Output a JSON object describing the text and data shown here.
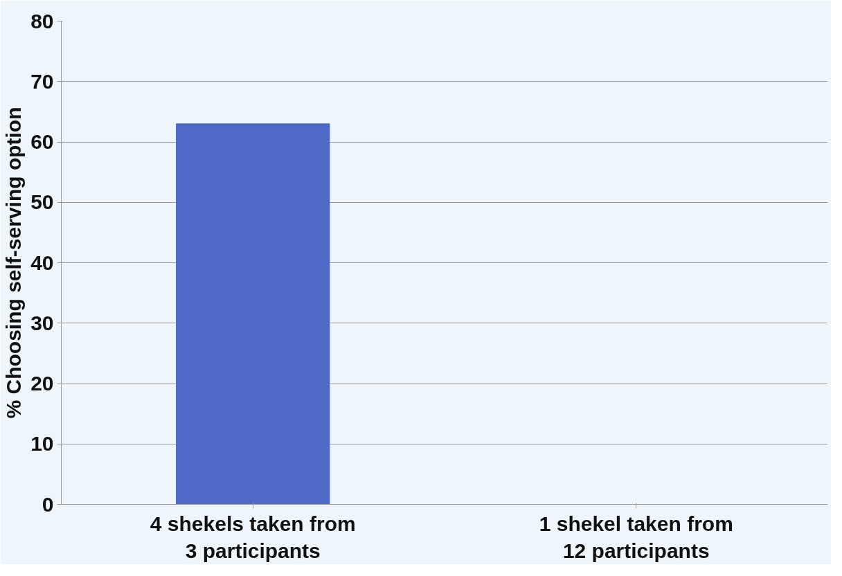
{
  "chart_data": {
    "type": "bar",
    "ylabel": "% Choosing self-serving option",
    "categories": [
      "4 shekels taken from\n3 participants",
      "1 shekel taken from\n12 participants"
    ],
    "values": [
      63,
      0
    ],
    "color": "#4f69c6",
    "ylim": [
      0,
      80
    ],
    "yticks": [
      0,
      10,
      20,
      30,
      40,
      50,
      60,
      70,
      80
    ],
    "grid": "y"
  }
}
